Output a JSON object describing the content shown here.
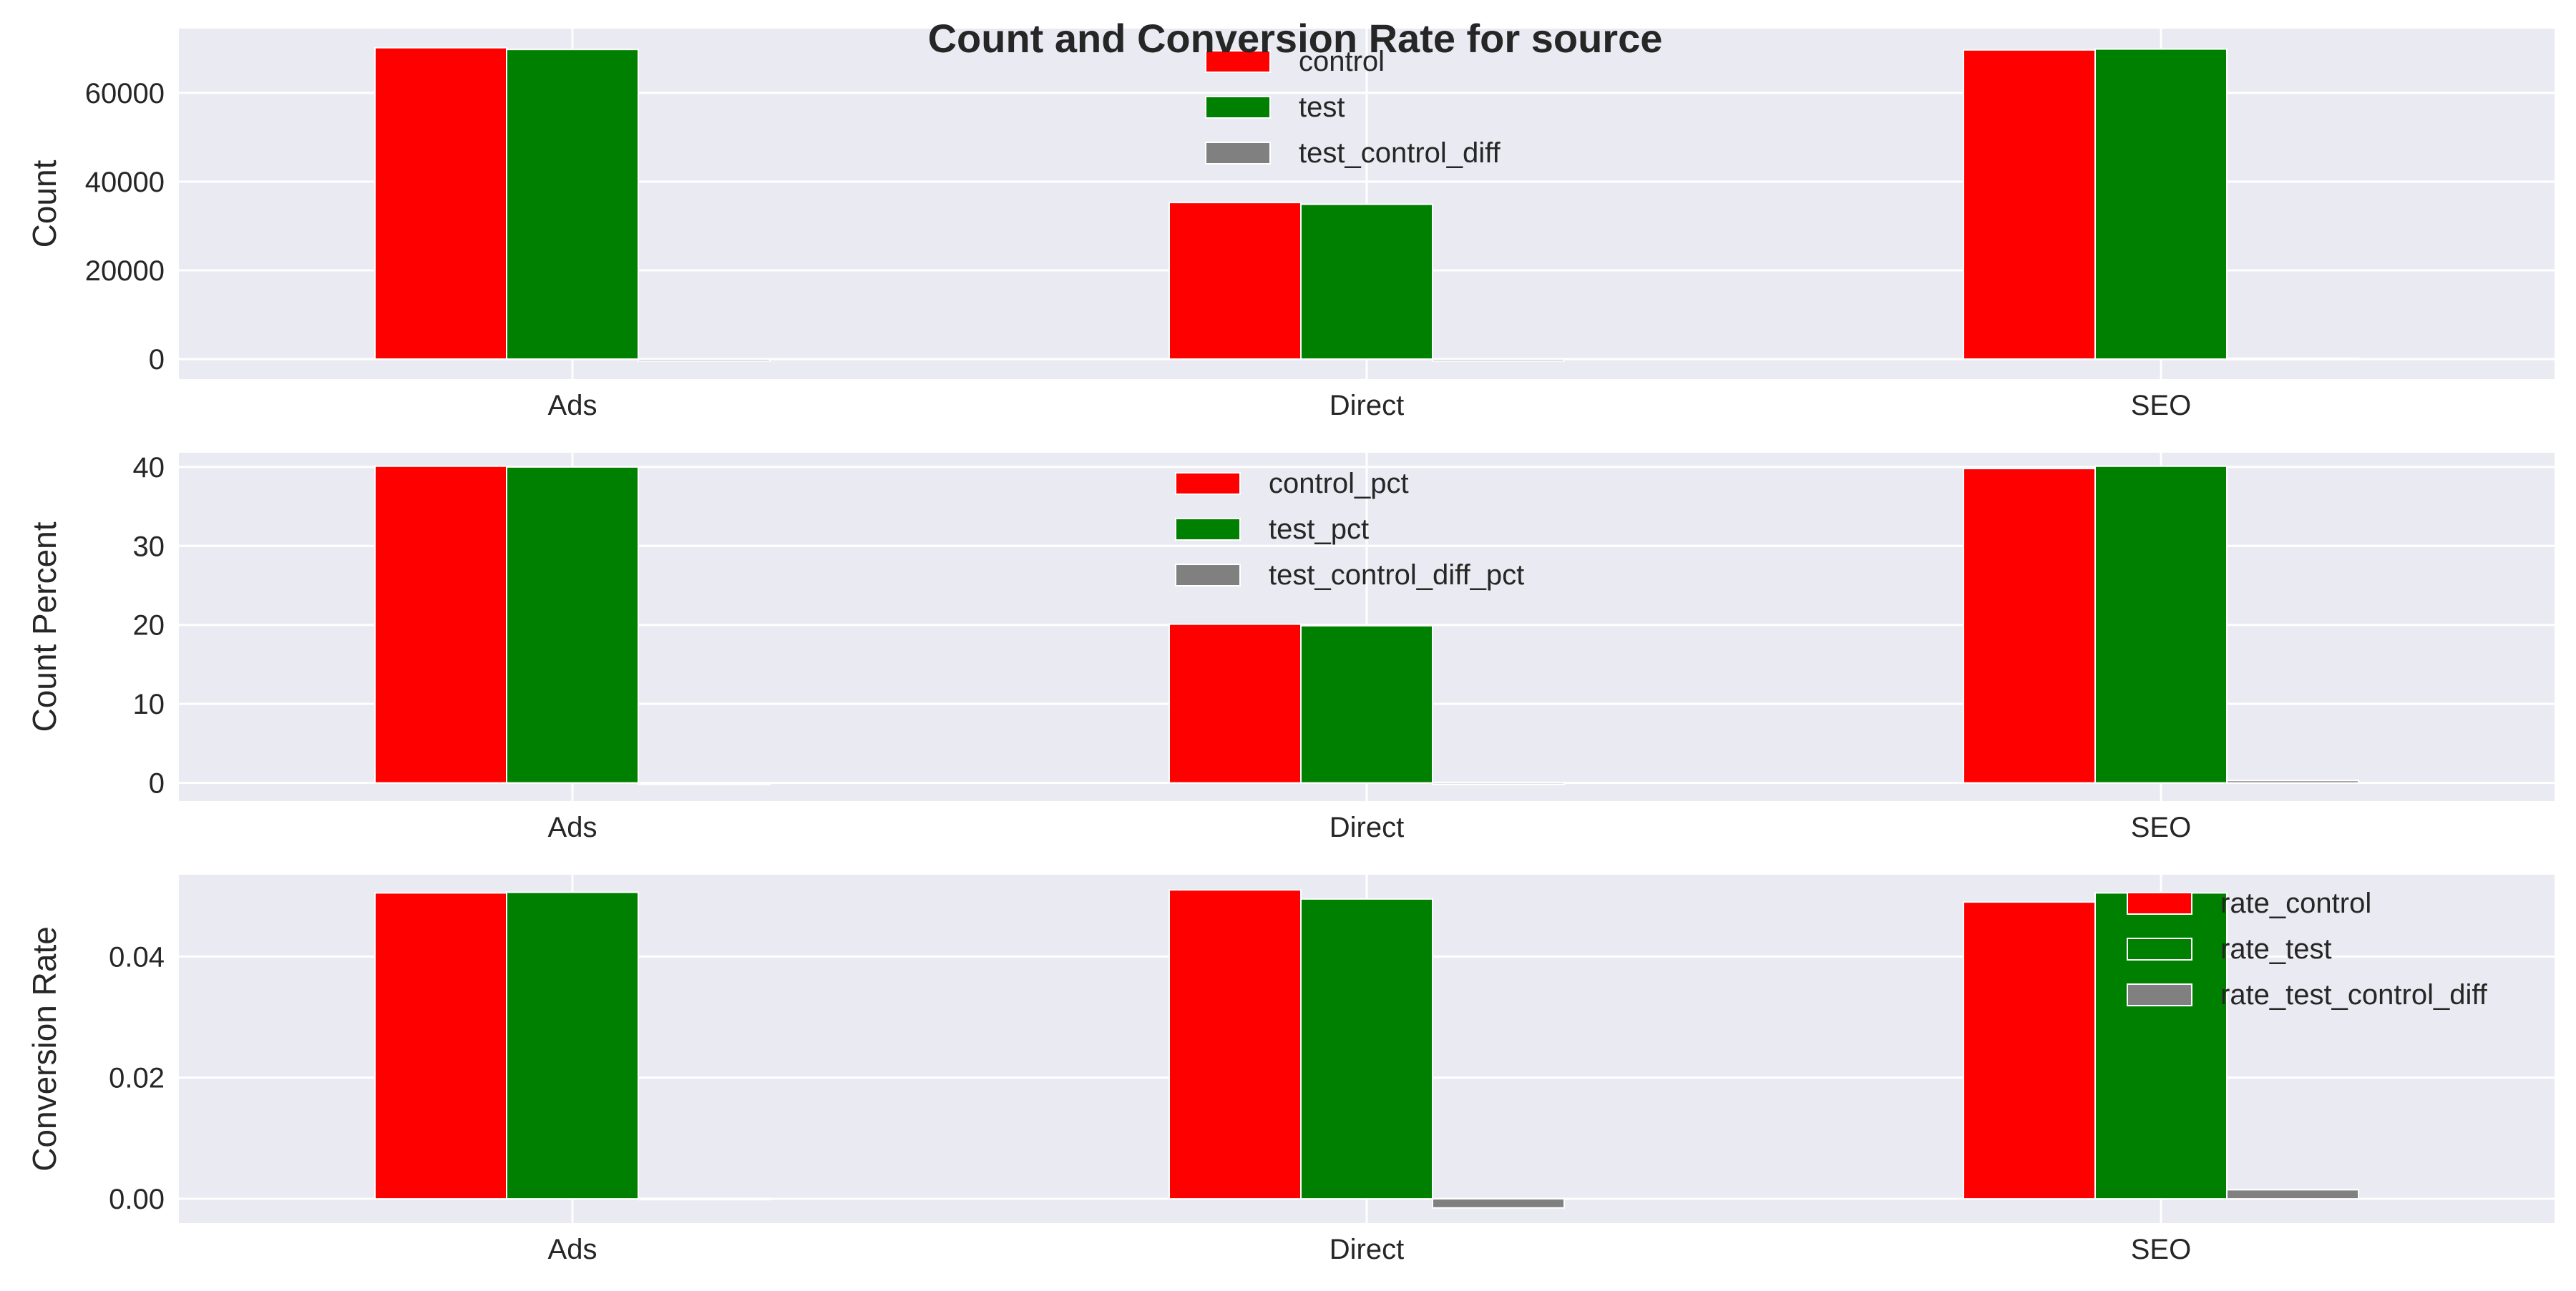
{
  "chart_data": {
    "type": "bar",
    "title": "Count and Conversion Rate for source",
    "categories": [
      "Ads",
      "Direct",
      "SEO"
    ],
    "colors": {
      "axes_bg": "#eaeaf2",
      "grid": "#ffffff",
      "control": "#ff0000",
      "test": "#008000",
      "diff": "#808080"
    },
    "subplots": [
      {
        "ylabel": "Count",
        "ylim": [
          -4500,
          74500
        ],
        "yticks": [
          0,
          20000,
          40000,
          60000
        ],
        "ytick_labels": [
          "0",
          "20000",
          "40000",
          "60000"
        ],
        "legend_position": "top-center",
        "series": [
          {
            "name": "control",
            "values": [
              70200,
              35300,
              69700
            ]
          },
          {
            "name": "test",
            "values": [
              69800,
              34900,
              69900
            ]
          },
          {
            "name": "test_control_diff",
            "values": [
              -400,
              -400,
              200
            ]
          }
        ]
      },
      {
        "ylabel": "Count Percent",
        "ylim": [
          -2.3,
          41.8
        ],
        "yticks": [
          0,
          10,
          20,
          30,
          40
        ],
        "ytick_labels": [
          "0",
          "10",
          "20",
          "30",
          "40"
        ],
        "legend_position": "top-center",
        "series": [
          {
            "name": "control_pct",
            "values": [
              40.1,
              20.1,
              39.8
            ]
          },
          {
            "name": "test_pct",
            "values": [
              40.0,
              19.9,
              40.1
            ]
          },
          {
            "name": "test_control_diff_pct",
            "values": [
              -0.1,
              -0.2,
              0.3
            ]
          }
        ]
      },
      {
        "ylabel": "Conversion Rate",
        "ylim": [
          -0.004,
          0.0535
        ],
        "yticks": [
          0.0,
          0.02,
          0.04
        ],
        "ytick_labels": [
          "0.00",
          "0.02",
          "0.04"
        ],
        "legend_position": "top-right",
        "series": [
          {
            "name": "rate_control",
            "values": [
              0.0505,
              0.051,
              0.049
            ]
          },
          {
            "name": "rate_test",
            "values": [
              0.0506,
              0.0495,
              0.0505
            ]
          },
          {
            "name": "rate_test_control_diff",
            "values": [
              0.0001,
              -0.0015,
              0.0015
            ]
          }
        ]
      }
    ]
  }
}
